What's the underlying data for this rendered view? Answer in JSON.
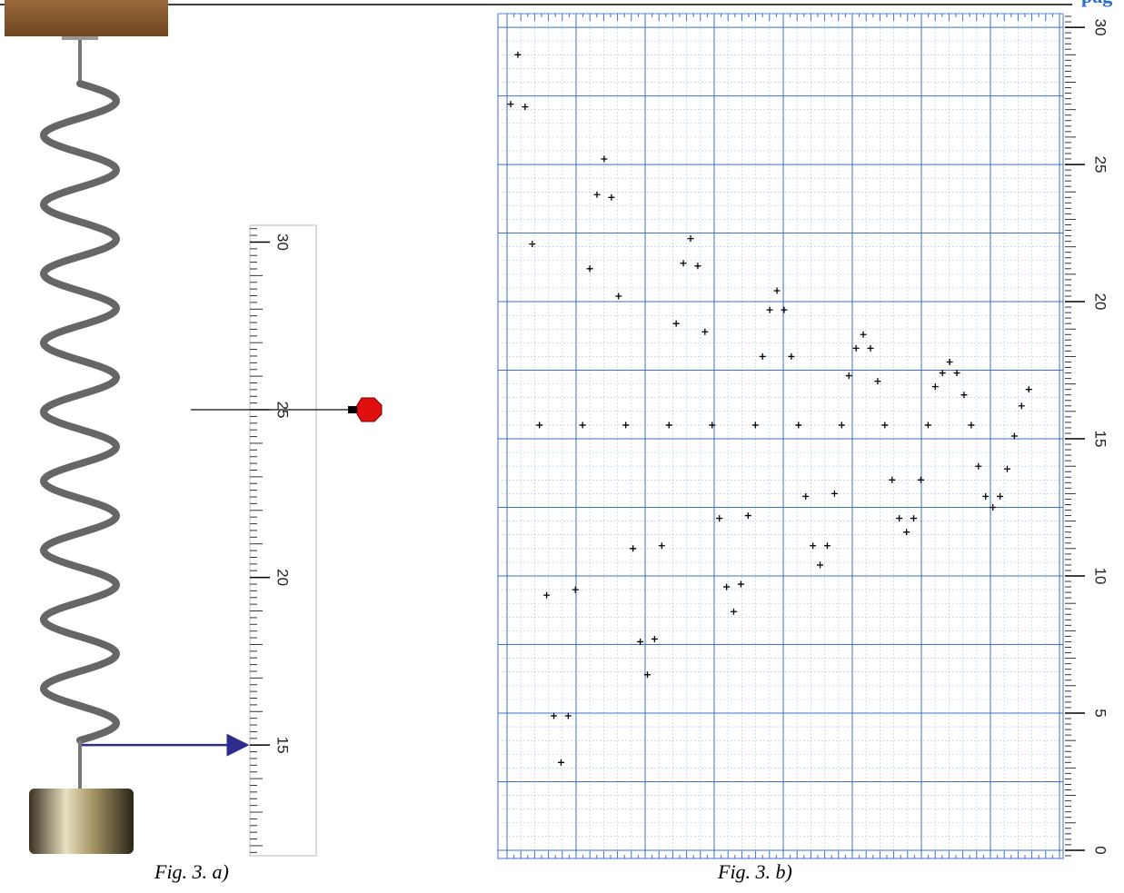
{
  "header": {
    "text": "pag"
  },
  "figure_a": {
    "caption": "Fig. 3. a)",
    "ylim": [
      11.7,
      30.5
    ],
    "yticks": [
      15,
      20,
      25,
      30
    ],
    "marker_value": 25,
    "arrow_value": 15
  },
  "chart_data": {
    "type": "scatter",
    "caption": "Fig. 3. b)",
    "color": "#000000",
    "grid": true,
    "ylim": [
      -0.3,
      30.5
    ],
    "yticks": [
      0,
      5,
      10,
      15,
      20,
      25,
      30
    ],
    "values": [
      27.2,
      29.0,
      27.1,
      22.1,
      15.5,
      9.3,
      4.9,
      3.2,
      4.9,
      9.5,
      15.5,
      21.2,
      23.9,
      25.2,
      23.8,
      20.2,
      15.5,
      11.0,
      7.6,
      6.4,
      7.7,
      11.1,
      15.5,
      19.2,
      21.4,
      22.3,
      21.3,
      18.9,
      15.5,
      12.1,
      9.6,
      8.7,
      9.7,
      12.2,
      15.5,
      18.0,
      19.7,
      20.4,
      19.7,
      18.0,
      15.5,
      12.9,
      11.1,
      10.4,
      11.1,
      13.0,
      15.5,
      17.3,
      18.3,
      18.8,
      18.3,
      17.1,
      15.5,
      13.5,
      12.1,
      11.6,
      12.1,
      13.5,
      15.5,
      16.9,
      17.4,
      17.8,
      17.4,
      16.6,
      15.5,
      14.0,
      12.9,
      12.5,
      12.9,
      13.9,
      15.1,
      16.2,
      16.8
    ]
  }
}
